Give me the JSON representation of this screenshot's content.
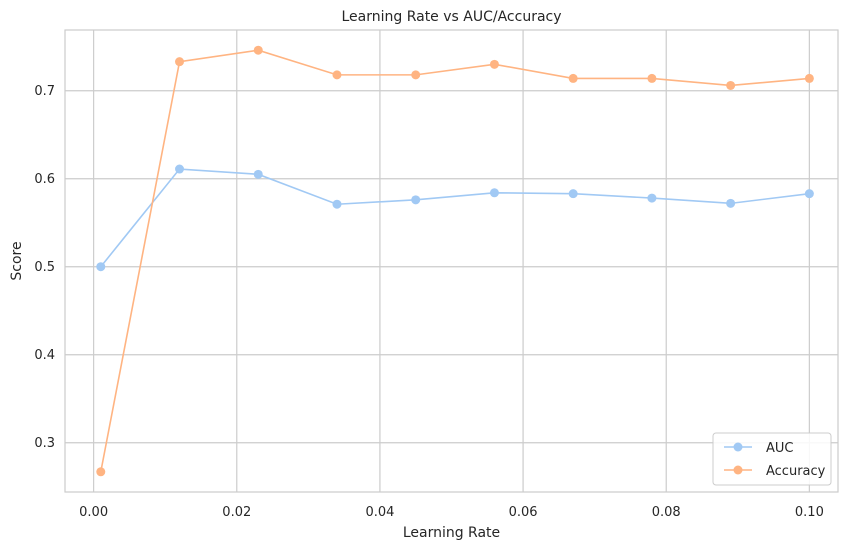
{
  "chart_data": {
    "type": "line",
    "title": "Learning Rate vs AUC/Accuracy",
    "xlabel": "Learning Rate",
    "ylabel": "Score",
    "x": [
      0.001,
      0.012,
      0.023,
      0.034,
      0.045,
      0.056,
      0.067,
      0.078,
      0.089,
      0.1
    ],
    "series": [
      {
        "name": "AUC",
        "color": "#a1c9f4",
        "values": [
          0.5,
          0.611,
          0.605,
          0.571,
          0.576,
          0.584,
          0.583,
          0.578,
          0.572,
          0.583
        ]
      },
      {
        "name": "Accuracy",
        "color": "#ffb482",
        "values": [
          0.267,
          0.733,
          0.746,
          0.718,
          0.718,
          0.73,
          0.714,
          0.714,
          0.706,
          0.714
        ]
      }
    ],
    "xlim": [
      -0.004,
      0.104
    ],
    "ylim": [
      0.244,
      0.769
    ],
    "xticks": [
      0.0,
      0.02,
      0.04,
      0.06,
      0.08,
      0.1
    ],
    "xtick_labels": [
      "0.00",
      "0.02",
      "0.04",
      "0.06",
      "0.08",
      "0.10"
    ],
    "yticks": [
      0.3,
      0.4,
      0.5,
      0.6,
      0.7
    ],
    "ytick_labels": [
      "0.3",
      "0.4",
      "0.5",
      "0.6",
      "0.7"
    ],
    "grid": true,
    "legend_position": "lower-right",
    "markers": "circle"
  }
}
